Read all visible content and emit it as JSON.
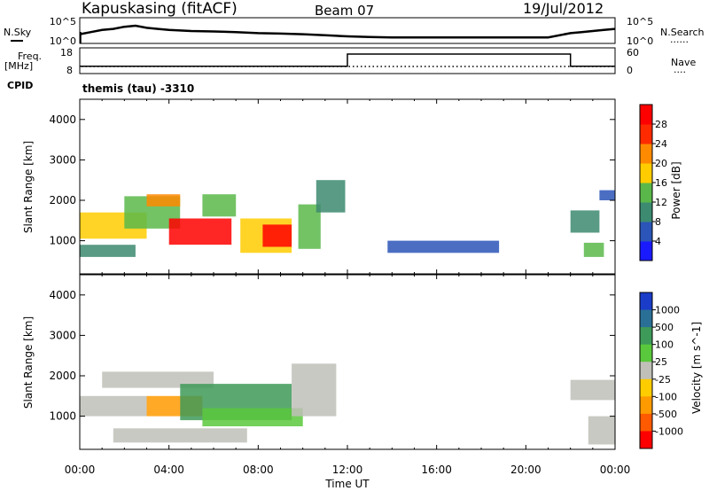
{
  "header": {
    "station": "Kapuskasing (fitACF)",
    "beam": "Beam 07",
    "date": "19/Jul/2012"
  },
  "panel_labels": {
    "nsky": "N.Sky",
    "nsearch": "N.Search",
    "freq": "Freq.",
    "freq_unit": "[MHz]",
    "nave": "Nave",
    "cpid": "CPID",
    "cpid_value": "themis (tau) -3310",
    "nsky_ticks": [
      "10^5",
      "10^0"
    ],
    "nsearch_ticks": [
      "10^5",
      "10^0"
    ],
    "freq_ticks": [
      "18",
      "8"
    ],
    "nave_ticks": [
      "60",
      "0"
    ],
    "dots": "......",
    "dots_short": "...."
  },
  "axes": {
    "ylabel": "Slant Range [km]",
    "xlabel": "Time UT",
    "xticks": [
      "00:00",
      "04:00",
      "08:00",
      "12:00",
      "16:00",
      "20:00",
      "00:00"
    ],
    "yticks": [
      "1000",
      "2000",
      "3000",
      "4000"
    ]
  },
  "power_colorbar": {
    "label": "Power [dB]",
    "ticks": [
      "4",
      "8",
      "12",
      "16",
      "20",
      "24",
      "28"
    ],
    "colors": [
      "#1a1aff",
      "#2b55b8",
      "#3c8a70",
      "#5ab84a",
      "#ffcc00",
      "#ff8a00",
      "#ff2a00",
      "#ff0000"
    ]
  },
  "velocity_colorbar": {
    "label": "Velocity [m s^-1]",
    "ticks": [
      "1000",
      "500",
      "100",
      "25",
      "-25",
      "-100",
      "-500",
      "-1000"
    ],
    "colors": [
      "#1a3cc8",
      "#2a6f96",
      "#3e9a58",
      "#5ac83c",
      "#c0c0b8",
      "#ffcc00",
      "#ff9a00",
      "#ff5a00",
      "#ff0000"
    ]
  },
  "chart_data": [
    {
      "type": "line",
      "name": "N.Sky noise",
      "xrange_hours": [
        0,
        24
      ],
      "x": [
        0,
        0.5,
        1,
        1.5,
        2,
        2.5,
        3,
        3.5,
        4,
        5,
        6,
        7,
        8,
        9,
        10,
        11,
        12,
        13,
        14,
        15,
        16,
        17,
        18,
        19,
        20,
        21,
        22,
        22.5,
        23,
        23.5,
        24
      ],
      "values": [
        0.35,
        0.45,
        0.55,
        0.6,
        0.7,
        0.75,
        0.65,
        0.6,
        0.55,
        0.5,
        0.48,
        0.45,
        0.4,
        0.38,
        0.35,
        0.3,
        0.25,
        0.22,
        0.2,
        0.2,
        0.2,
        0.2,
        0.2,
        0.2,
        0.2,
        0.2,
        0.4,
        0.45,
        0.5,
        0.55,
        0.6
      ]
    },
    {
      "type": "line",
      "name": "Freq.",
      "units": "MHz",
      "ylim": [
        8,
        18
      ],
      "x": [
        0,
        12,
        12,
        22,
        22,
        24
      ],
      "values": [
        10.5,
        10.5,
        16.0,
        16.0,
        10.5,
        10.5
      ]
    },
    {
      "type": "heatmap",
      "name": "Power",
      "units": "dB",
      "x_hours": [
        0,
        24
      ],
      "ylim_km": [
        180,
        4500
      ],
      "patches": [
        {
          "t0": 0.0,
          "t1": 3.0,
          "r0": 1050,
          "r1": 1700,
          "v": 16
        },
        {
          "t0": 0.0,
          "t1": 2.5,
          "r0": 600,
          "r1": 900,
          "v": 10
        },
        {
          "t0": 2.0,
          "t1": 4.5,
          "r0": 1300,
          "r1": 2100,
          "v": 14
        },
        {
          "t0": 3.0,
          "t1": 4.5,
          "r0": 1850,
          "r1": 2150,
          "v": 22
        },
        {
          "t0": 4.0,
          "t1": 6.8,
          "r0": 900,
          "r1": 1550,
          "v": 30
        },
        {
          "t0": 5.5,
          "t1": 7.0,
          "r0": 1600,
          "r1": 2150,
          "v": 12
        },
        {
          "t0": 7.2,
          "t1": 9.5,
          "r0": 700,
          "r1": 1550,
          "v": 16
        },
        {
          "t0": 8.2,
          "t1": 9.5,
          "r0": 850,
          "r1": 1400,
          "v": 30
        },
        {
          "t0": 9.8,
          "t1": 10.8,
          "r0": 800,
          "r1": 1900,
          "v": 12
        },
        {
          "t0": 10.6,
          "t1": 11.9,
          "r0": 1700,
          "r1": 2500,
          "v": 8
        },
        {
          "t0": 13.8,
          "t1": 18.8,
          "r0": 700,
          "r1": 1000,
          "v": 6
        },
        {
          "t0": 22.0,
          "t1": 23.3,
          "r0": 1200,
          "r1": 1750,
          "v": 8
        },
        {
          "t0": 22.6,
          "t1": 23.5,
          "r0": 600,
          "r1": 950,
          "v": 12
        },
        {
          "t0": 23.3,
          "t1": 24.0,
          "r0": 2000,
          "r1": 2250,
          "v": 6
        }
      ]
    },
    {
      "type": "heatmap",
      "name": "Velocity",
      "units": "m s^-1",
      "x_hours": [
        0,
        24
      ],
      "ylim_km": [
        180,
        4500
      ],
      "patches": [
        {
          "t0": 1.0,
          "t1": 6.0,
          "r0": 1700,
          "r1": 2100,
          "v": 10
        },
        {
          "t0": 3.0,
          "t1": 5.5,
          "r0": 1000,
          "r1": 1500,
          "v": -150
        },
        {
          "t0": 4.5,
          "t1": 9.5,
          "r0": 900,
          "r1": 1800,
          "v": 120
        },
        {
          "t0": 5.5,
          "t1": 10.0,
          "r0": 750,
          "r1": 1200,
          "v": 50
        },
        {
          "t0": 0.0,
          "t1": 3.0,
          "r0": 1000,
          "r1": 1500,
          "v": 0
        },
        {
          "t0": 1.5,
          "t1": 7.5,
          "r0": 350,
          "r1": 700,
          "v": 5
        },
        {
          "t0": 9.5,
          "t1": 11.5,
          "r0": 1000,
          "r1": 2300,
          "v": 10
        },
        {
          "t0": 22.0,
          "t1": 24.0,
          "r0": 1400,
          "r1": 1900,
          "v": 0
        },
        {
          "t0": 22.8,
          "t1": 24.0,
          "r0": 300,
          "r1": 1000,
          "v": 0
        }
      ]
    }
  ]
}
